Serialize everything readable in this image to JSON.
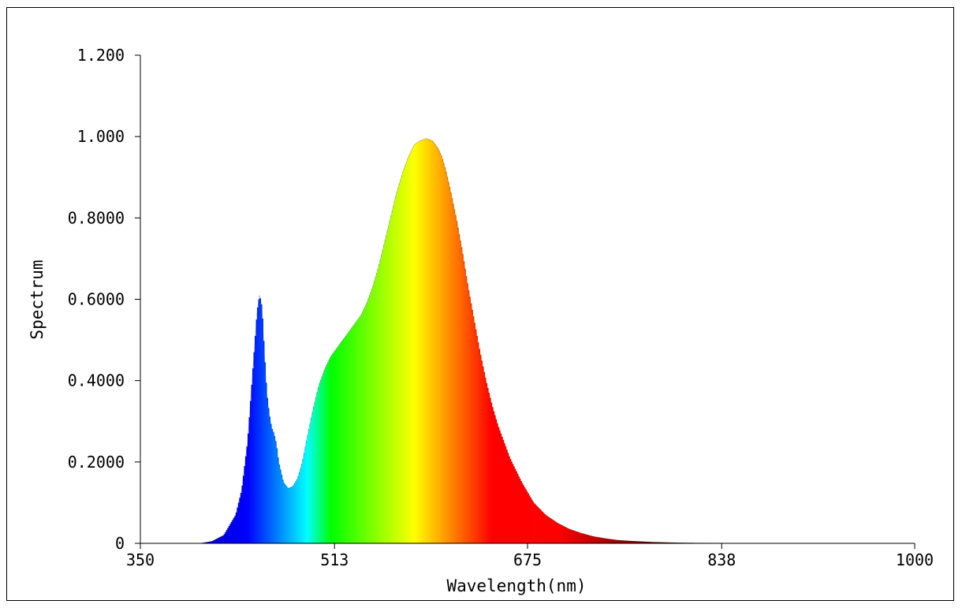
{
  "chart_data": {
    "type": "area",
    "title": "",
    "xlabel": "Wavelength(nm)",
    "ylabel": "Spectrum",
    "xlim": [
      350,
      1000
    ],
    "ylim": [
      0,
      1.2
    ],
    "x_ticks": [
      350,
      513,
      675,
      838,
      1000
    ],
    "x_tick_labels": [
      "350",
      "513",
      "675",
      "838",
      "1000"
    ],
    "y_ticks": [
      0,
      0.2,
      0.4,
      0.6,
      0.8,
      1.0,
      1.2
    ],
    "y_tick_labels": [
      "0",
      "0.2000",
      "0.4000",
      "0.6000",
      "0.8000",
      "1.000",
      "1.200"
    ],
    "grid": false,
    "legend": "none",
    "fill": "spectral (wavelength-colored)",
    "series": [
      {
        "x": [
          350,
          380,
          400,
          410,
          420,
          430,
          435,
          440,
          445,
          448,
          450,
          452,
          454,
          456,
          458,
          460,
          462,
          464,
          466,
          470,
          474,
          478,
          482,
          486,
          490,
          495,
          500,
          505,
          510,
          515,
          520,
          525,
          530,
          535,
          540,
          545,
          550,
          555,
          560,
          565,
          570,
          575,
          580,
          585,
          590,
          595,
          600,
          603,
          606,
          610,
          615,
          620,
          625,
          630,
          635,
          640,
          645,
          650,
          660,
          670,
          680,
          690,
          700,
          710,
          720,
          730,
          740,
          750,
          760,
          780,
          800,
          820,
          850,
          880,
          900,
          950,
          1000
        ],
        "y": [
          0.0,
          0.0,
          0.0,
          0.005,
          0.02,
          0.07,
          0.13,
          0.25,
          0.45,
          0.57,
          0.61,
          0.58,
          0.47,
          0.37,
          0.32,
          0.285,
          0.27,
          0.245,
          0.2,
          0.15,
          0.135,
          0.14,
          0.16,
          0.2,
          0.26,
          0.33,
          0.39,
          0.43,
          0.46,
          0.48,
          0.5,
          0.52,
          0.54,
          0.56,
          0.59,
          0.63,
          0.68,
          0.74,
          0.8,
          0.86,
          0.91,
          0.95,
          0.98,
          0.99,
          0.995,
          0.99,
          0.97,
          0.95,
          0.92,
          0.87,
          0.8,
          0.72,
          0.63,
          0.55,
          0.47,
          0.4,
          0.34,
          0.29,
          0.21,
          0.15,
          0.1,
          0.07,
          0.05,
          0.035,
          0.025,
          0.017,
          0.012,
          0.008,
          0.006,
          0.003,
          0.0015,
          0.0008,
          0.0003,
          0.0002,
          0.0002,
          0.0002,
          0.0002
        ]
      }
    ]
  }
}
